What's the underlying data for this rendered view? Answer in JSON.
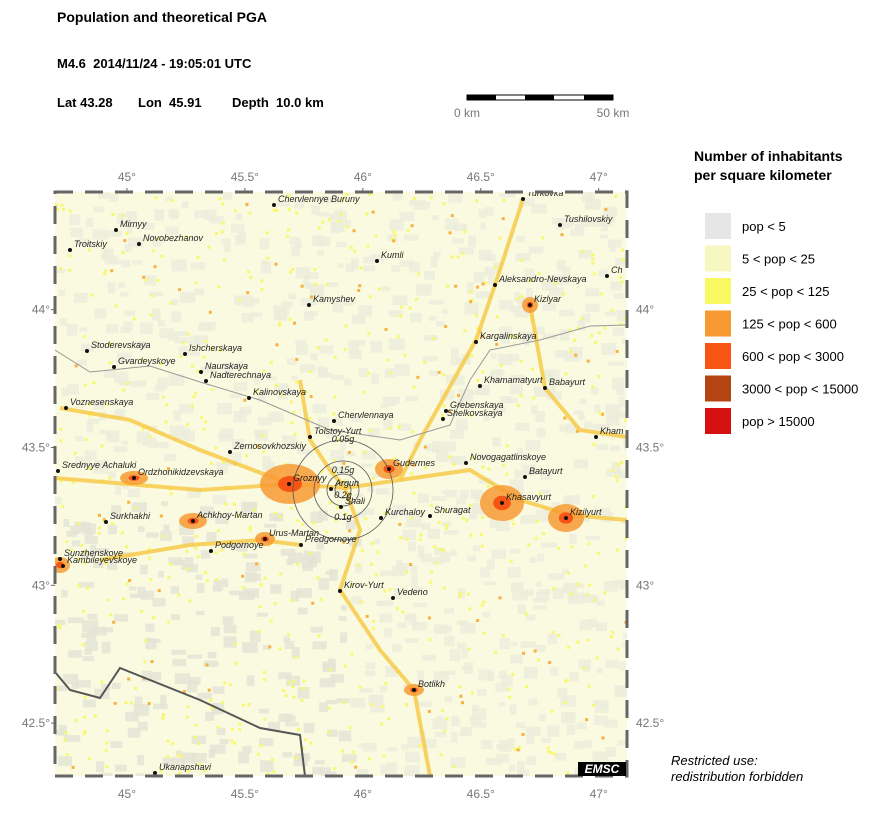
{
  "header": {
    "title": "Population and theoretical PGA",
    "event": "M4.6  2014/11/24 - 19:05:01 UTC",
    "location": {
      "lat": "Lat 43.28",
      "lon": "Lon  45.91",
      "depth": "Depth  10.0 km"
    }
  },
  "scale_bar": {
    "start": "0 km",
    "end": "50 km"
  },
  "map": {
    "lon_range": [
      44.695,
      47.12
    ],
    "lat_range": [
      42.308,
      44.427
    ],
    "lon_ticks": [
      {
        "value": 45,
        "label": "45°"
      },
      {
        "value": 45.5,
        "label": "45.5°"
      },
      {
        "value": 46,
        "label": "46°"
      },
      {
        "value": 46.5,
        "label": "46.5°"
      },
      {
        "value": 47,
        "label": "47°"
      }
    ],
    "lat_ticks": [
      {
        "value": 44,
        "label": "44°"
      },
      {
        "value": 43.5,
        "label": "43.5°"
      },
      {
        "value": 43,
        "label": "43°"
      },
      {
        "value": 42.5,
        "label": "42.5°"
      }
    ],
    "cities": [
      "Chervlennye Buruny",
      "Turkovka",
      "Tushilovskiy",
      "Mirnyy",
      "Troitskiy",
      "Novobezhanov",
      "Kumli",
      "Aleksandro-Nevskaya",
      "Ch",
      "Kizlyar",
      "Kamyshev",
      "Kargalinskaya",
      "Stoderevskaya",
      "Ishcherskaya",
      "Gvardeyskoye",
      "Naurskaya",
      "Nadterechnaya",
      "Khamamatyurt",
      "Babayurt",
      "Kalinovskaya",
      "Voznesenskaya",
      "Grebenskaya",
      "Shelkovskaya",
      "Chervlennaya",
      "Kham",
      "Tolstoy-Yurt",
      "Zernosovkhozskiy",
      "Gudermes",
      "Novogagatlinskoye",
      "Srednyye Achaluki",
      "Ordzhonikidzevskaya",
      "Batayurt",
      "Groznyy",
      "Argun",
      "Khasavyurt",
      "Shali",
      "Kurchaloy",
      "Shuragat",
      "Kizilyurt",
      "Surkhakhi",
      "Achkhoy-Martan",
      "Urus-Martan",
      "Predgornoye",
      "Podgornoye",
      "Sunzhenskoye",
      "Kambileyevskoye",
      "Kirov-Yurt",
      "Vedeno",
      "Botlikh",
      "Ukanapshavi"
    ],
    "pga_labels": [
      "0.05g",
      "0.15g",
      "0.2g",
      "0.1g"
    ],
    "credit": "EMSC"
  },
  "legend": {
    "title": [
      "Number of inhabitants",
      "per square kilometer"
    ],
    "items": [
      {
        "label": "pop < 5",
        "color": "#e6e6e6"
      },
      {
        "label": "5 < pop < 25",
        "color": "#f7f7c2"
      },
      {
        "label": "25 < pop < 125",
        "color": "#f8f863"
      },
      {
        "label": "125 < pop < 600",
        "color": "#f89a32"
      },
      {
        "label": "600 < pop < 3000",
        "color": "#f85414"
      },
      {
        "label": "3000 < pop < 15000",
        "color": "#b44412"
      },
      {
        "label": "pop > 15000",
        "color": "#d41010"
      }
    ]
  },
  "footnote": [
    "Restricted use:",
    "redistribution forbidden"
  ]
}
